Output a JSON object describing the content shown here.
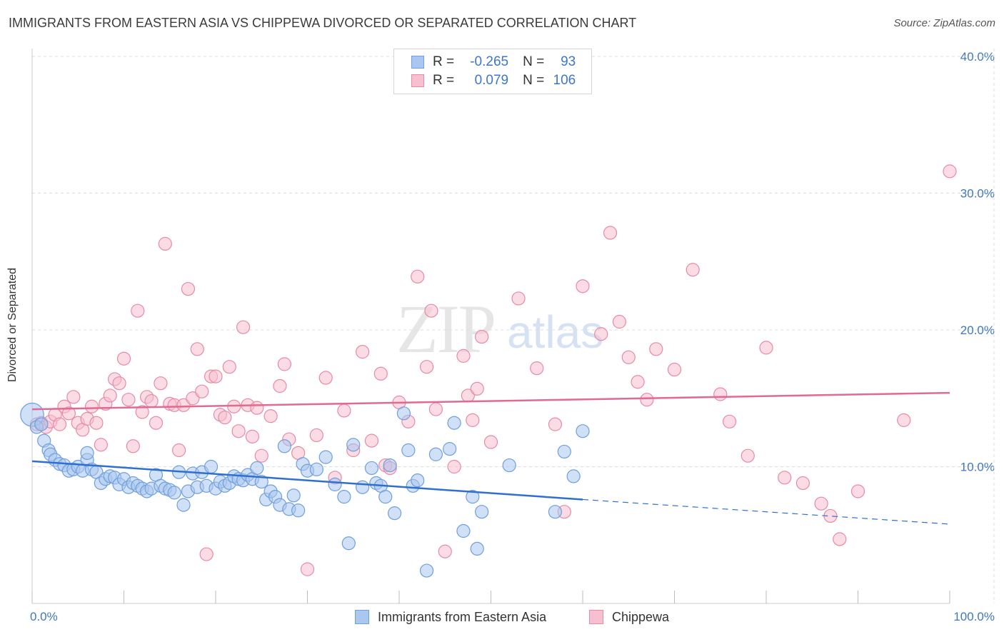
{
  "title": "IMMIGRANTS FROM EASTERN ASIA VS CHIPPEWA DIVORCED OR SEPARATED CORRELATION CHART",
  "source": "Source: ZipAtlas.com",
  "watermark": {
    "zip": "ZIP",
    "atlas": "atlas"
  },
  "legend": {
    "r_label": "R =",
    "n_label": "N =",
    "blue": {
      "r": "-0.265",
      "n": "93"
    },
    "pink": {
      "r": "0.079",
      "n": "106"
    }
  },
  "colors": {
    "blue_fill": "#aac7ef",
    "blue_stroke": "#6f9fdc",
    "blue_line": "#2f6fd0",
    "pink_fill": "#f7bfd0",
    "pink_stroke": "#e68aa8",
    "pink_line": "#e06a93",
    "tick": "#3f77c5",
    "grid": "#dddddd"
  },
  "chart_data": {
    "type": "scatter",
    "title": "IMMIGRANTS FROM EASTERN ASIA VS CHIPPEWA DIVORCED OR SEPARATED CORRELATION CHART",
    "xlabel": "",
    "ylabel": "Divorced or Separated",
    "xlim": [
      0,
      100
    ],
    "ylim": [
      0,
      40
    ],
    "x_tick_labels": [
      "0.0%",
      "100.0%"
    ],
    "y_ticks": [
      10,
      20,
      30,
      40
    ],
    "y_tick_labels": [
      "10.0%",
      "20.0%",
      "30.0%",
      "40.0%"
    ],
    "grid": true,
    "series": [
      {
        "name": "Immigrants from Eastern Asia",
        "color": "#aac7ef",
        "trend": {
          "x0": 0,
          "y0": 10.4,
          "x1": 60,
          "y1": 7.6,
          "dash_x1": 100,
          "dash_y1": 5.8
        },
        "points": [
          [
            0,
            13.8,
            1.8
          ],
          [
            0.5,
            12.9,
            1
          ],
          [
            1,
            13.1,
            1
          ],
          [
            1.3,
            11.9,
            1
          ],
          [
            1.8,
            11.2,
            1
          ],
          [
            2,
            10.9,
            1
          ],
          [
            2.5,
            10.5,
            1
          ],
          [
            3,
            10.2,
            1
          ],
          [
            3.5,
            10.1,
            1
          ],
          [
            4,
            9.7,
            1
          ],
          [
            4.5,
            9.8,
            1
          ],
          [
            5,
            10,
            1
          ],
          [
            5.5,
            9.7,
            1
          ],
          [
            6,
            10.5,
            1
          ],
          [
            6,
            11,
            1
          ],
          [
            6.5,
            9.8,
            1
          ],
          [
            7,
            9.6,
            1
          ],
          [
            7.5,
            8.8,
            1
          ],
          [
            8,
            9.1,
            1
          ],
          [
            8.5,
            9.3,
            1
          ],
          [
            9,
            9.2,
            1
          ],
          [
            9.5,
            8.7,
            1
          ],
          [
            10,
            9.1,
            1
          ],
          [
            10.5,
            8.5,
            1
          ],
          [
            11,
            8.8,
            1
          ],
          [
            11.5,
            8.6,
            1
          ],
          [
            12,
            8.4,
            1
          ],
          [
            12.5,
            8.2,
            1
          ],
          [
            13,
            8.4,
            1
          ],
          [
            13.5,
            9.4,
            1
          ],
          [
            14,
            8.6,
            1
          ],
          [
            14.5,
            8.4,
            1
          ],
          [
            15,
            8.3,
            1
          ],
          [
            15.5,
            8.1,
            1
          ],
          [
            16,
            9.6,
            1
          ],
          [
            16.5,
            7.2,
            1
          ],
          [
            17,
            8.2,
            1
          ],
          [
            17.5,
            9.5,
            1
          ],
          [
            18,
            8.5,
            1
          ],
          [
            18.5,
            9.6,
            1
          ],
          [
            19,
            8.6,
            1
          ],
          [
            19.5,
            10,
            1
          ],
          [
            20,
            8.4,
            1
          ],
          [
            20.5,
            8.9,
            1
          ],
          [
            21,
            8.6,
            1
          ],
          [
            21.5,
            8.8,
            1
          ],
          [
            22,
            9.3,
            1
          ],
          [
            22.5,
            9.1,
            1
          ],
          [
            23,
            9,
            1
          ],
          [
            23.5,
            9.4,
            1
          ],
          [
            24,
            9.1,
            1
          ],
          [
            24.5,
            9.9,
            1
          ],
          [
            25,
            8.9,
            1
          ],
          [
            25.5,
            7.6,
            1
          ],
          [
            26,
            8.2,
            1
          ],
          [
            26.5,
            7.8,
            1
          ],
          [
            27,
            7.2,
            1
          ],
          [
            27.5,
            11.5,
            1
          ],
          [
            28,
            6.9,
            1
          ],
          [
            28.5,
            7.9,
            1
          ],
          [
            29,
            6.8,
            1
          ],
          [
            29.5,
            10.2,
            1
          ],
          [
            30,
            9.7,
            1
          ],
          [
            31,
            9.8,
            1
          ],
          [
            32,
            10.7,
            1
          ],
          [
            33,
            8.7,
            1
          ],
          [
            34,
            7.8,
            1
          ],
          [
            34.5,
            4.4,
            1
          ],
          [
            35,
            11.6,
            1
          ],
          [
            36,
            8.5,
            1
          ],
          [
            37,
            9.9,
            1
          ],
          [
            37.5,
            8.8,
            1
          ],
          [
            38,
            8.6,
            1
          ],
          [
            38.5,
            7.8,
            1
          ],
          [
            39,
            10.1,
            1
          ],
          [
            39.5,
            6.6,
            1
          ],
          [
            40.5,
            13.9,
            1
          ],
          [
            41,
            11.2,
            1
          ],
          [
            41.5,
            8.6,
            1
          ],
          [
            42,
            9,
            1
          ],
          [
            43,
            2.4,
            1
          ],
          [
            44,
            10.9,
            1
          ],
          [
            45.5,
            11.3,
            1
          ],
          [
            46,
            13.2,
            1
          ],
          [
            47,
            5.3,
            1
          ],
          [
            48,
            7.8,
            1
          ],
          [
            48.5,
            4,
            1
          ],
          [
            49,
            6.7,
            1
          ],
          [
            52,
            10.1,
            1
          ],
          [
            57,
            6.7,
            1
          ],
          [
            58,
            11.1,
            1
          ],
          [
            59,
            9.3,
            1
          ],
          [
            60,
            12.6,
            1
          ]
        ]
      },
      {
        "name": "Chippewa",
        "color": "#f7bfd0",
        "trend": {
          "x0": 0,
          "y0": 14.2,
          "x1": 100,
          "y1": 15.4
        },
        "points": [
          [
            0.5,
            13.1,
            1
          ],
          [
            1,
            13.2,
            1
          ],
          [
            1.5,
            12.9,
            1
          ],
          [
            2,
            13.3,
            1
          ],
          [
            2.5,
            13.8,
            1
          ],
          [
            3,
            13.1,
            1
          ],
          [
            3.5,
            14.4,
            1
          ],
          [
            4,
            13.9,
            1
          ],
          [
            4.5,
            15.1,
            1
          ],
          [
            5,
            13.2,
            1
          ],
          [
            5.5,
            12.7,
            1
          ],
          [
            6,
            13.5,
            1
          ],
          [
            6.5,
            14.4,
            1
          ],
          [
            7,
            13.2,
            1
          ],
          [
            7.5,
            11.6,
            1
          ],
          [
            8,
            14.6,
            1
          ],
          [
            8.5,
            15.2,
            1
          ],
          [
            9,
            16.4,
            1
          ],
          [
            9.5,
            16.1,
            1
          ],
          [
            10,
            17.9,
            1
          ],
          [
            10.5,
            14.9,
            1
          ],
          [
            11,
            11.5,
            1
          ],
          [
            11.5,
            21.4,
            1
          ],
          [
            12,
            14,
            1
          ],
          [
            12.5,
            15.1,
            1
          ],
          [
            13,
            14.8,
            1
          ],
          [
            13.5,
            13.2,
            1
          ],
          [
            14,
            16.1,
            1
          ],
          [
            14.5,
            26.3,
            1
          ],
          [
            15,
            14.6,
            1
          ],
          [
            15.5,
            14.5,
            1
          ],
          [
            16,
            11.2,
            1
          ],
          [
            16.5,
            14.5,
            1
          ],
          [
            17,
            23,
            1
          ],
          [
            17.5,
            15,
            1
          ],
          [
            18,
            18.6,
            1
          ],
          [
            18.5,
            15.5,
            1
          ],
          [
            19,
            3.6,
            1
          ],
          [
            19.5,
            16.6,
            1
          ],
          [
            20,
            16.6,
            1
          ],
          [
            20.5,
            13.8,
            1
          ],
          [
            21,
            13.6,
            1
          ],
          [
            21.5,
            17.3,
            1
          ],
          [
            22,
            14.4,
            1
          ],
          [
            22.5,
            12.6,
            1
          ],
          [
            23,
            20.2,
            1
          ],
          [
            23.5,
            14.5,
            1
          ],
          [
            24,
            12.2,
            1
          ],
          [
            24.5,
            14.3,
            1
          ],
          [
            25,
            10.8,
            1
          ],
          [
            26,
            13.7,
            1
          ],
          [
            27,
            15.9,
            1
          ],
          [
            27.5,
            17.5,
            1
          ],
          [
            28,
            12,
            1
          ],
          [
            29,
            11,
            1
          ],
          [
            30,
            2.5,
            1
          ],
          [
            31,
            12.3,
            1
          ],
          [
            32,
            16.5,
            1
          ],
          [
            33,
            9.2,
            1
          ],
          [
            34,
            14.1,
            1
          ],
          [
            35,
            11.2,
            1
          ],
          [
            36,
            18.4,
            1
          ],
          [
            37,
            11.9,
            1
          ],
          [
            38,
            16.8,
            1
          ],
          [
            38.5,
            10.1,
            1
          ],
          [
            39,
            9.9,
            1
          ],
          [
            40,
            14.7,
            1
          ],
          [
            41,
            13.3,
            1
          ],
          [
            42,
            23.9,
            1
          ],
          [
            43,
            17.3,
            1
          ],
          [
            43.5,
            21.4,
            1
          ],
          [
            44,
            14.2,
            1
          ],
          [
            45,
            3.8,
            1
          ],
          [
            46,
            10,
            1
          ],
          [
            47,
            18.1,
            1
          ],
          [
            47.5,
            15.2,
            1
          ],
          [
            48,
            13.4,
            1
          ],
          [
            48.5,
            15.7,
            1
          ],
          [
            49,
            19.5,
            1
          ],
          [
            50,
            11.8,
            1
          ],
          [
            53,
            22.3,
            1
          ],
          [
            55,
            17.2,
            1
          ],
          [
            57,
            13.1,
            1
          ],
          [
            58,
            6.7,
            1
          ],
          [
            60,
            23.2,
            1
          ],
          [
            62,
            19.7,
            1
          ],
          [
            63,
            27.1,
            1
          ],
          [
            64,
            20.6,
            1
          ],
          [
            65,
            18,
            1
          ],
          [
            66,
            16.2,
            1
          ],
          [
            67,
            14.9,
            1
          ],
          [
            68,
            18.6,
            1
          ],
          [
            70,
            17.1,
            1
          ],
          [
            72,
            24.4,
            1
          ],
          [
            75,
            15.3,
            1
          ],
          [
            76,
            13.3,
            1
          ],
          [
            78,
            10.8,
            1
          ],
          [
            80,
            18.7,
            1
          ],
          [
            82,
            9.2,
            1
          ],
          [
            84,
            8.8,
            1
          ],
          [
            86,
            7.3,
            1
          ],
          [
            87,
            6.4,
            1
          ],
          [
            88,
            4.7,
            1
          ],
          [
            90,
            8.2,
            1
          ],
          [
            100,
            31.6,
            1
          ],
          [
            95,
            13.4,
            1
          ]
        ]
      }
    ]
  }
}
